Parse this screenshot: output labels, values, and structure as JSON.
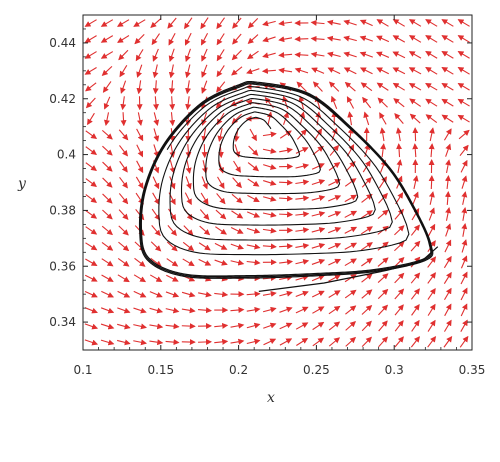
{
  "chart_data": {
    "type": "phase-portrait",
    "xlabel": "x",
    "ylabel": "y",
    "xlim": [
      0.1,
      0.35
    ],
    "ylim": [
      0.33,
      0.45
    ],
    "x_ticks": [
      0.1,
      0.15,
      0.2,
      0.25,
      0.3,
      0.35
    ],
    "x_tick_labels": [
      "0.1",
      "0.15",
      "0.2",
      "0.25",
      "0.3",
      "0.35"
    ],
    "y_ticks": [
      0.34,
      0.36,
      0.38,
      0.4,
      0.42,
      0.44
    ],
    "y_tick_labels": [
      "0.34",
      "0.36",
      "0.38",
      "0.4",
      "0.42",
      "0.44"
    ],
    "grid": false,
    "colors": {
      "field_arrows": "#e03030",
      "trajectory": "#111111",
      "axes": "#222222"
    },
    "equilibrium": {
      "x": 0.212,
      "y": 0.411
    },
    "limit_cycle": [
      [
        0.212,
        0.4255
      ],
      [
        0.245,
        0.4215
      ],
      [
        0.272,
        0.4095
      ],
      [
        0.297,
        0.395
      ],
      [
        0.313,
        0.3805
      ],
      [
        0.323,
        0.368
      ],
      [
        0.32,
        0.3625
      ],
      [
        0.288,
        0.3585
      ],
      [
        0.25,
        0.357
      ],
      [
        0.205,
        0.3562
      ],
      [
        0.165,
        0.3568
      ],
      [
        0.142,
        0.3625
      ],
      [
        0.137,
        0.373
      ],
      [
        0.14,
        0.388
      ],
      [
        0.153,
        0.404
      ],
      [
        0.176,
        0.418
      ],
      [
        0.2,
        0.4245
      ]
    ],
    "spiral": {
      "turns": 7.6,
      "start_angle_deg": 20,
      "start_scale": 0.1,
      "end_scale": 0.93
    },
    "tail": [
      [
        0.213,
        0.351
      ],
      [
        0.255,
        0.354
      ],
      [
        0.295,
        0.3585
      ],
      [
        0.317,
        0.3615
      ],
      [
        0.328,
        0.367
      ]
    ]
  }
}
